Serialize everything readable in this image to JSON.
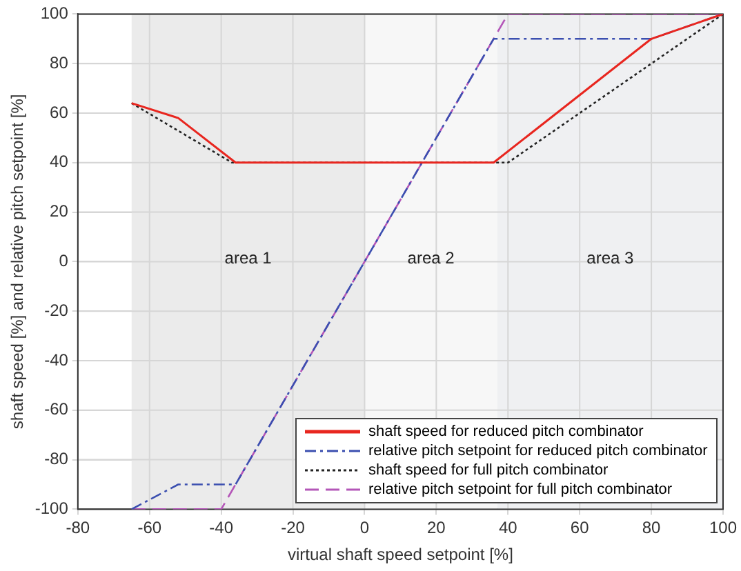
{
  "chart_data": {
    "type": "line",
    "xlabel": "virtual shaft speed setpoint [%]",
    "ylabel": "shaft speed [%] and relative pitch setpoint [%]",
    "xlim": [
      -80,
      100
    ],
    "xticks": [
      -80,
      -60,
      -40,
      -20,
      0,
      20,
      40,
      60,
      80,
      100
    ],
    "ylim": [
      -100,
      100
    ],
    "yticks": [
      -100,
      -80,
      -60,
      -40,
      -20,
      0,
      20,
      40,
      60,
      80,
      100
    ],
    "grid": true,
    "legend": "bottom right",
    "marker": "none",
    "bands": [
      {
        "axis": "x",
        "from": -65,
        "to": 0,
        "label": "area 1",
        "color": "#ebebeb"
      },
      {
        "axis": "x",
        "from": 0,
        "to": 37,
        "label": "area 2",
        "color": "#f7f7f7"
      },
      {
        "axis": "x",
        "from": 37,
        "to": 100,
        "label": "area 3",
        "color": "#eff0f2"
      }
    ],
    "series": [
      {
        "name": "shaft speed for reduced pitch combinator",
        "color": "#e8261f",
        "line_style": "solid",
        "x": [
          -65,
          -52,
          -36,
          36,
          80,
          100
        ],
        "values": [
          64,
          58,
          40,
          40,
          90,
          100
        ]
      },
      {
        "name": "relative pitch setpoint for reduced pitch combinator",
        "color": "#3b4fb0",
        "line_style": "dashdot",
        "x": [
          -65,
          -52,
          -36,
          36,
          80,
          100
        ],
        "values": [
          -100,
          -90,
          -90,
          90,
          90,
          100
        ]
      },
      {
        "name": "shaft speed for full pitch combinator",
        "color": "#222222",
        "line_style": "dotted",
        "x": [
          -65,
          -37,
          40,
          100
        ],
        "values": [
          64,
          40,
          40,
          100
        ]
      },
      {
        "name": "relative pitch setpoint for full pitch combinator",
        "color": "#b456b8",
        "line_style": "dashed",
        "x": [
          -65,
          -40,
          40,
          100
        ],
        "values": [
          -100,
          -100,
          100,
          100
        ]
      }
    ]
  }
}
